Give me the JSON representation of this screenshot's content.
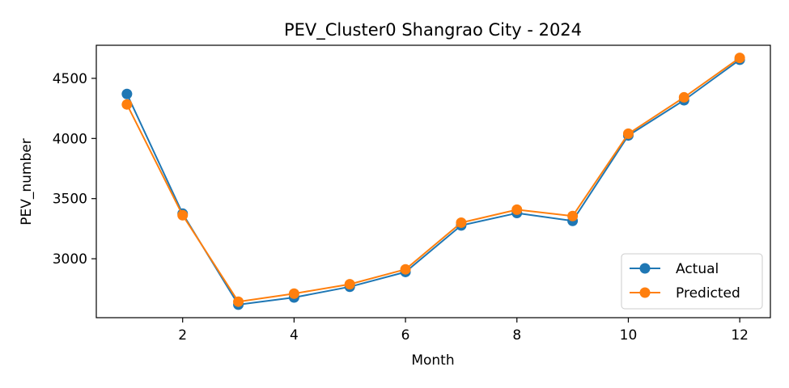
{
  "chart_data": {
    "type": "line",
    "title": "PEV_Cluster0 Shangrao City - 2024",
    "xlabel": "Month",
    "ylabel": "PEV_number",
    "x": [
      1,
      2,
      3,
      4,
      5,
      6,
      7,
      8,
      9,
      10,
      11,
      12
    ],
    "xlim": [
      0.45,
      12.55
    ],
    "ylim": [
      2510,
      4775
    ],
    "xticks": [
      2,
      4,
      6,
      8,
      10,
      12
    ],
    "yticks": [
      3000,
      3500,
      4000,
      4500
    ],
    "grid": false,
    "legend_position": "lower right",
    "series": [
      {
        "name": "Actual",
        "color": "#1f77b4",
        "marker": "circle",
        "values": [
          4370,
          3375,
          2618,
          2678,
          2767,
          2890,
          3277,
          3380,
          3315,
          4025,
          4318,
          4655
        ]
      },
      {
        "name": "Predicted",
        "color": "#ff7f0e",
        "marker": "circle",
        "values": [
          4283,
          3362,
          2643,
          2710,
          2788,
          2912,
          3300,
          3408,
          3355,
          4040,
          4342,
          4670
        ]
      }
    ]
  }
}
